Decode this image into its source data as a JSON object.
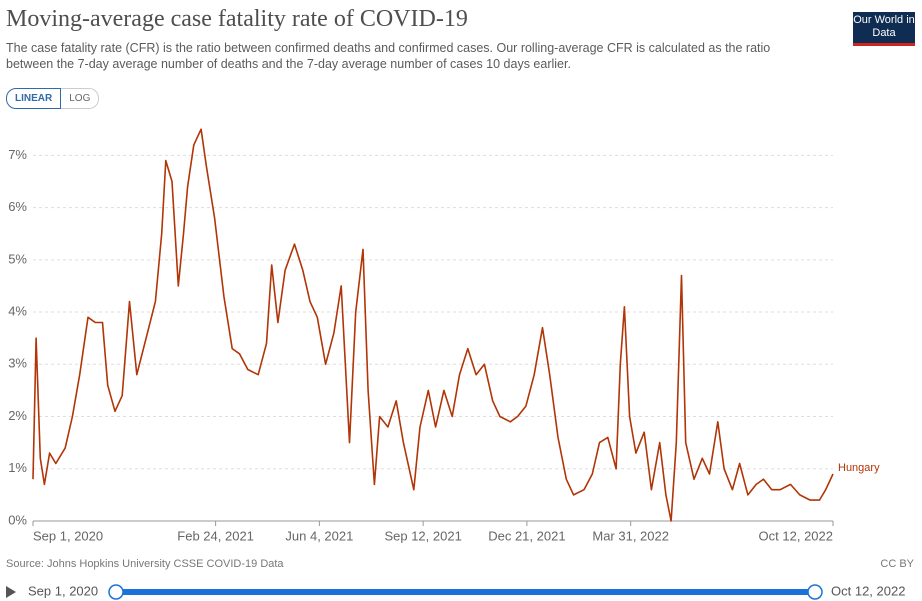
{
  "chart_data": {
    "type": "line",
    "title": "Moving-average case fatality rate of COVID-19",
    "subtitle": "The case fatality rate (CFR) is the ratio between confirmed deaths and confirmed cases. Our rolling-average CFR is calculated as the ratio between the 7-day average number of deaths and the 7-day average number of cases 10 days earlier.",
    "logo": "Our World in Data",
    "scale_buttons": [
      "LINEAR",
      "LOG"
    ],
    "source": "Source: Johns Hopkins University CSSE COVID-19 Data",
    "license": "CC BY",
    "timeline": {
      "start": "Sep 1, 2020",
      "end": "Oct 12, 2022"
    },
    "log_scale": false,
    "grid": true,
    "xlim": [
      "2020-09-01",
      "2022-10-12"
    ],
    "xticks": [
      {
        "value": "2020-09-01",
        "label": "Sep 1, 2020"
      },
      {
        "value": "2021-02-24",
        "label": "Feb 24, 2021"
      },
      {
        "value": "2021-06-04",
        "label": "Jun 4, 2021"
      },
      {
        "value": "2021-09-12",
        "label": "Sep 12, 2021"
      },
      {
        "value": "2021-12-21",
        "label": "Dec 21, 2021"
      },
      {
        "value": "2022-03-31",
        "label": "Mar 31, 2022"
      },
      {
        "value": "2022-10-12",
        "label": "Oct 12, 2022"
      }
    ],
    "ylim": [
      0,
      7.6
    ],
    "yticks": [
      {
        "value": 0,
        "label": "0%"
      },
      {
        "value": 1,
        "label": "1%"
      },
      {
        "value": 2,
        "label": "2%"
      },
      {
        "value": 3,
        "label": "3%"
      },
      {
        "value": 4,
        "label": "4%"
      },
      {
        "value": 5,
        "label": "5%"
      },
      {
        "value": 6,
        "label": "6%"
      },
      {
        "value": 7,
        "label": "7%"
      }
    ],
    "x": [
      "2020-09-01",
      "2020-09-04",
      "2020-09-08",
      "2020-09-12",
      "2020-09-17",
      "2020-09-23",
      "2020-10-02",
      "2020-10-09",
      "2020-10-16",
      "2020-10-24",
      "2020-10-31",
      "2020-11-07",
      "2020-11-12",
      "2020-11-19",
      "2020-11-26",
      "2020-12-03",
      "2020-12-10",
      "2020-12-19",
      "2020-12-28",
      "2021-01-03",
      "2021-01-07",
      "2021-01-13",
      "2021-01-19",
      "2021-01-24",
      "2021-01-28",
      "2021-02-03",
      "2021-02-10",
      "2021-02-15",
      "2021-02-23",
      "2021-03-04",
      "2021-03-12",
      "2021-03-19",
      "2021-03-27",
      "2021-04-06",
      "2021-04-14",
      "2021-04-19",
      "2021-04-25",
      "2021-05-02",
      "2021-05-11",
      "2021-05-19",
      "2021-05-26",
      "2021-06-02",
      "2021-06-10",
      "2021-06-18",
      "2021-06-25",
      "2021-07-03",
      "2021-07-09",
      "2021-07-16",
      "2021-07-21",
      "2021-07-27",
      "2021-08-01",
      "2021-08-09",
      "2021-08-17",
      "2021-08-24",
      "2021-09-03",
      "2021-09-09",
      "2021-09-17",
      "2021-09-24",
      "2021-10-02",
      "2021-10-10",
      "2021-10-17",
      "2021-10-25",
      "2021-11-02",
      "2021-11-10",
      "2021-11-18",
      "2021-11-25",
      "2021-12-05",
      "2021-12-12",
      "2021-12-20",
      "2021-12-28",
      "2022-01-05",
      "2022-01-12",
      "2022-01-20",
      "2022-01-28",
      "2022-02-04",
      "2022-02-14",
      "2022-02-22",
      "2022-03-01",
      "2022-03-09",
      "2022-03-17",
      "2022-03-21",
      "2022-03-25",
      "2022-03-30",
      "2022-04-05",
      "2022-04-13",
      "2022-04-20",
      "2022-04-28",
      "2022-05-04",
      "2022-05-09",
      "2022-05-14",
      "2022-05-19",
      "2022-05-23",
      "2022-05-31",
      "2022-06-08",
      "2022-06-15",
      "2022-06-23",
      "2022-06-29",
      "2022-07-07",
      "2022-07-14",
      "2022-07-22",
      "2022-07-30",
      "2022-08-06",
      "2022-08-14",
      "2022-08-22",
      "2022-09-01",
      "2022-09-10",
      "2022-09-20",
      "2022-09-29",
      "2022-10-05",
      "2022-10-12"
    ],
    "series": [
      {
        "name": "Hungary",
        "color": "#b13507",
        "values": [
          0.8,
          3.5,
          1.2,
          0.7,
          1.3,
          1.1,
          1.4,
          2.0,
          2.8,
          3.9,
          3.8,
          3.8,
          2.6,
          2.1,
          2.4,
          4.2,
          2.8,
          3.5,
          4.2,
          5.5,
          6.9,
          6.5,
          4.5,
          5.5,
          6.4,
          7.2,
          7.5,
          6.8,
          5.8,
          4.3,
          3.3,
          3.2,
          2.9,
          2.8,
          3.4,
          4.9,
          3.8,
          4.8,
          5.3,
          4.8,
          4.2,
          3.9,
          3.0,
          3.6,
          4.5,
          1.5,
          4.0,
          5.2,
          2.5,
          0.7,
          2.0,
          1.8,
          2.3,
          1.5,
          0.6,
          1.8,
          2.5,
          1.8,
          2.5,
          2.0,
          2.8,
          3.3,
          2.8,
          3.0,
          2.3,
          2.0,
          1.9,
          2.0,
          2.2,
          2.8,
          3.7,
          2.8,
          1.6,
          0.8,
          0.5,
          0.6,
          0.9,
          1.5,
          1.6,
          1.0,
          3.0,
          4.1,
          2.0,
          1.3,
          1.7,
          0.6,
          1.5,
          0.5,
          0.0,
          1.5,
          4.7,
          1.5,
          0.8,
          1.2,
          0.9,
          1.9,
          1.0,
          0.6,
          1.1,
          0.5,
          0.7,
          0.8,
          0.6,
          0.6,
          0.7,
          0.5,
          0.4,
          0.4,
          0.6,
          0.9
        ]
      }
    ]
  }
}
